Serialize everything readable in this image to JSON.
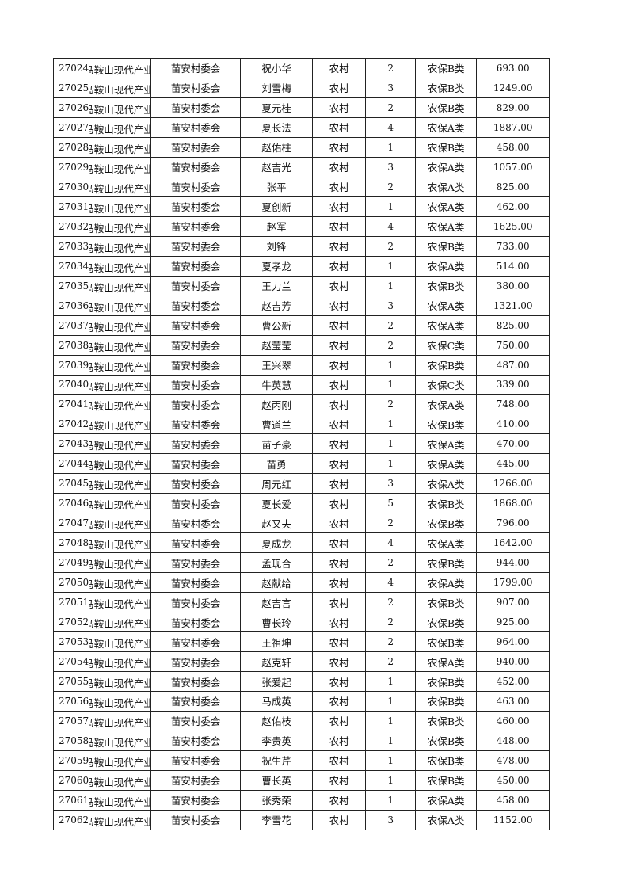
{
  "columns_defaults": {
    "org": "马鞍山现代产业",
    "committee": "苗安村委会",
    "area": "农村"
  },
  "rows": [
    [
      "27024",
      "祝小华",
      "2",
      "农保B类",
      "693.00"
    ],
    [
      "27025",
      "刘雪梅",
      "3",
      "农保B类",
      "1249.00"
    ],
    [
      "27026",
      "夏元桂",
      "2",
      "农保B类",
      "829.00"
    ],
    [
      "27027",
      "夏长法",
      "4",
      "农保A类",
      "1887.00"
    ],
    [
      "27028",
      "赵佑柱",
      "1",
      "农保B类",
      "458.00"
    ],
    [
      "27029",
      "赵吉光",
      "3",
      "农保A类",
      "1057.00"
    ],
    [
      "27030",
      "张平",
      "2",
      "农保A类",
      "825.00"
    ],
    [
      "27031",
      "夏创新",
      "1",
      "农保A类",
      "462.00"
    ],
    [
      "27032",
      "赵军",
      "4",
      "农保A类",
      "1625.00"
    ],
    [
      "27033",
      "刘锋",
      "2",
      "农保B类",
      "733.00"
    ],
    [
      "27034",
      "夏孝龙",
      "1",
      "农保A类",
      "514.00"
    ],
    [
      "27035",
      "王力兰",
      "1",
      "农保B类",
      "380.00"
    ],
    [
      "27036",
      "赵吉芳",
      "3",
      "农保A类",
      "1321.00"
    ],
    [
      "27037",
      "曹公新",
      "2",
      "农保A类",
      "825.00"
    ],
    [
      "27038",
      "赵莹莹",
      "2",
      "农保C类",
      "750.00"
    ],
    [
      "27039",
      "王兴翠",
      "1",
      "农保B类",
      "487.00"
    ],
    [
      "27040",
      "牛英慧",
      "1",
      "农保C类",
      "339.00"
    ],
    [
      "27041",
      "赵丙刚",
      "2",
      "农保A类",
      "748.00"
    ],
    [
      "27042",
      "曹道兰",
      "1",
      "农保B类",
      "410.00"
    ],
    [
      "27043",
      "苗子豪",
      "1",
      "农保A类",
      "470.00"
    ],
    [
      "27044",
      "苗勇",
      "1",
      "农保A类",
      "445.00"
    ],
    [
      "27045",
      "周元红",
      "3",
      "农保A类",
      "1266.00"
    ],
    [
      "27046",
      "夏长爱",
      "5",
      "农保B类",
      "1868.00"
    ],
    [
      "27047",
      "赵又夫",
      "2",
      "农保B类",
      "796.00"
    ],
    [
      "27048",
      "夏成龙",
      "4",
      "农保A类",
      "1642.00"
    ],
    [
      "27049",
      "孟现合",
      "2",
      "农保B类",
      "944.00"
    ],
    [
      "27050",
      "赵献给",
      "4",
      "农保A类",
      "1799.00"
    ],
    [
      "27051",
      "赵吉言",
      "2",
      "农保B类",
      "907.00"
    ],
    [
      "27052",
      "曹长玲",
      "2",
      "农保B类",
      "925.00"
    ],
    [
      "27053",
      "王祖坤",
      "2",
      "农保B类",
      "964.00"
    ],
    [
      "27054",
      "赵克轩",
      "2",
      "农保A类",
      "940.00"
    ],
    [
      "27055",
      "张爱起",
      "1",
      "农保B类",
      "452.00"
    ],
    [
      "27056",
      "马成英",
      "1",
      "农保B类",
      "463.00"
    ],
    [
      "27057",
      "赵佑枝",
      "1",
      "农保B类",
      "460.00"
    ],
    [
      "27058",
      "李贵英",
      "1",
      "农保B类",
      "448.00"
    ],
    [
      "27059",
      "祝生芹",
      "1",
      "农保B类",
      "478.00"
    ],
    [
      "27060",
      "曹长英",
      "1",
      "农保B类",
      "450.00"
    ],
    [
      "27061",
      "张秀荣",
      "1",
      "农保A类",
      "458.00"
    ],
    [
      "27062",
      "李雪花",
      "3",
      "农保A类",
      "1152.00"
    ]
  ]
}
